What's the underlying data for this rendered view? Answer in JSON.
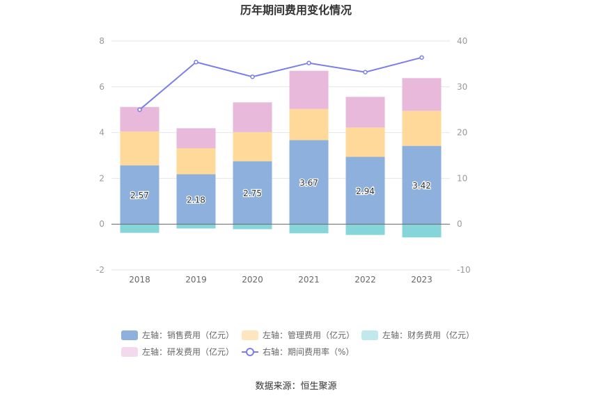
{
  "chart_data": {
    "type": "bar",
    "title": "历年期间费用变化情况",
    "categories": [
      "2018",
      "2019",
      "2020",
      "2021",
      "2022",
      "2023"
    ],
    "series": [
      {
        "name": "左轴：销售费用（亿元）",
        "axis": "left",
        "type": "bar",
        "stack": "cost",
        "color": "#8eb0dc",
        "values": [
          2.57,
          2.18,
          2.75,
          3.67,
          2.94,
          3.42
        ],
        "labels": [
          "2.57",
          "2.18",
          "2.75",
          "3.67",
          "2.94",
          "3.42"
        ]
      },
      {
        "name": "左轴：管理费用（亿元）",
        "axis": "left",
        "type": "bar",
        "stack": "cost",
        "color": "#ffd99a",
        "values": [
          1.48,
          1.14,
          1.27,
          1.36,
          1.28,
          1.53
        ]
      },
      {
        "name": "左轴：财务费用（亿元）",
        "axis": "left",
        "type": "bar",
        "stack": "cost",
        "color": "#86d6d9",
        "values": [
          -0.38,
          -0.19,
          -0.22,
          -0.4,
          -0.47,
          -0.58
        ]
      },
      {
        "name": "左轴：研发费用（亿元）",
        "axis": "left",
        "type": "bar",
        "stack": "cost",
        "color": "#e8b9da",
        "values": [
          1.07,
          0.87,
          1.3,
          1.67,
          1.34,
          1.43
        ]
      },
      {
        "name": "右轴：期间费用率（%）",
        "axis": "right",
        "type": "line",
        "color": "#7b7ee8",
        "values": [
          25.0,
          35.4,
          32.2,
          35.2,
          33.2,
          36.4
        ]
      }
    ],
    "y_left": {
      "ticks": [
        "-2",
        "0",
        "2",
        "4",
        "6",
        "8"
      ],
      "min": -2,
      "max": 8
    },
    "y_right": {
      "ticks": [
        "-10",
        "0",
        "10",
        "20",
        "30",
        "40"
      ],
      "min": -10,
      "max": 40
    },
    "grid": true,
    "legend": {
      "position": "bottom",
      "swatch_colors": [
        "#8eb0dc",
        "#ffe6bf",
        "#bfe9eb",
        "#f2d9ec",
        "#7b7ee8"
      ]
    },
    "source": "数据来源：恒生聚源"
  }
}
